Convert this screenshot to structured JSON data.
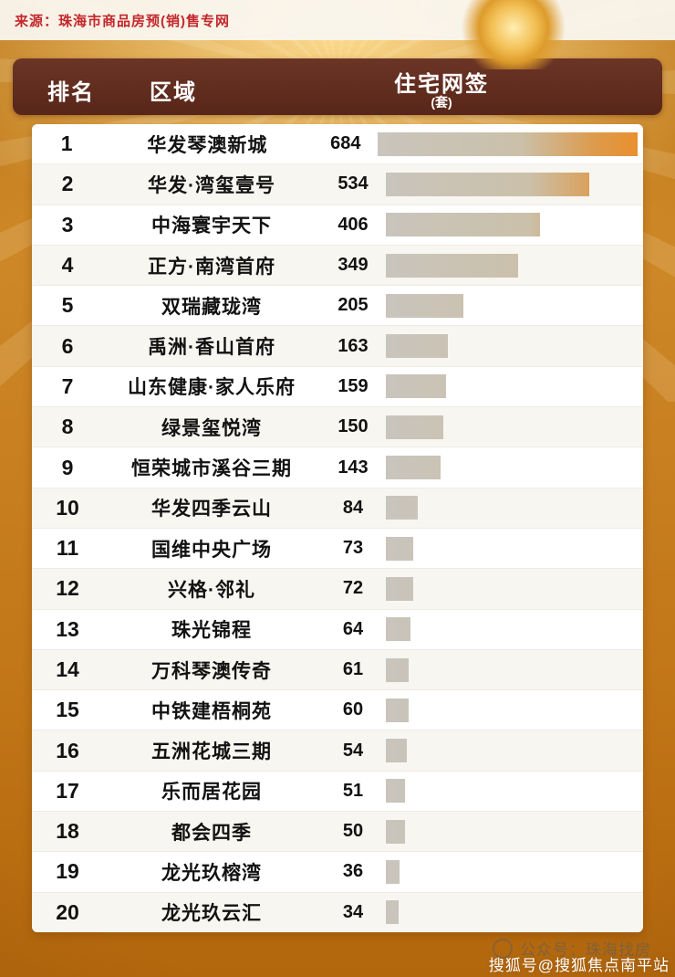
{
  "source_note": "来源：珠海市商品房预(销)售专网",
  "header": {
    "rank_label": "排名",
    "area_label": "区域",
    "metric_label": "住宅网签",
    "unit_label": "(套)"
  },
  "chart_data": {
    "type": "bar",
    "orientation": "horizontal",
    "title": "住宅网签",
    "unit": "套",
    "max_value": 684,
    "rows": [
      {
        "rank": 1,
        "name": "华发琴澳新城",
        "value": 684
      },
      {
        "rank": 2,
        "name": "华发·湾玺壹号",
        "value": 534
      },
      {
        "rank": 3,
        "name": "中海寰宇天下",
        "value": 406
      },
      {
        "rank": 4,
        "name": "正方·南湾首府",
        "value": 349
      },
      {
        "rank": 5,
        "name": "双瑞藏珑湾",
        "value": 205
      },
      {
        "rank": 6,
        "name": "禹洲·香山首府",
        "value": 163
      },
      {
        "rank": 7,
        "name": "山东健康·家人乐府",
        "value": 159
      },
      {
        "rank": 8,
        "name": "绿景玺悦湾",
        "value": 150
      },
      {
        "rank": 9,
        "name": "恒荣城市溪谷三期",
        "value": 143
      },
      {
        "rank": 10,
        "name": "华发四季云山",
        "value": 84
      },
      {
        "rank": 11,
        "name": "国维中央广场",
        "value": 73
      },
      {
        "rank": 12,
        "name": "兴格·邻礼",
        "value": 72
      },
      {
        "rank": 13,
        "name": "珠光锦程",
        "value": 64
      },
      {
        "rank": 14,
        "name": "万科琴澳传奇",
        "value": 61
      },
      {
        "rank": 15,
        "name": "中铁建梧桐苑",
        "value": 60
      },
      {
        "rank": 16,
        "name": "五洲花城三期",
        "value": 54
      },
      {
        "rank": 17,
        "name": "乐而居花园",
        "value": 51
      },
      {
        "rank": 18,
        "name": "都会四季",
        "value": 50
      },
      {
        "rank": 19,
        "name": "龙光玖榕湾",
        "value": 36
      },
      {
        "rank": 20,
        "name": "龙光玖云汇",
        "value": 34
      }
    ]
  },
  "watermark": {
    "official_account": "公众号：珠海找房",
    "sohu": "搜狐号@搜狐焦点南平站"
  },
  "colors": {
    "background_orange": "#c17617",
    "header_brown": "#6b3526",
    "source_red": "#c3272b",
    "bar_gray": "#c9c5bd",
    "bar_orange": "#ea8f2e",
    "card_white": "#ffffff"
  }
}
